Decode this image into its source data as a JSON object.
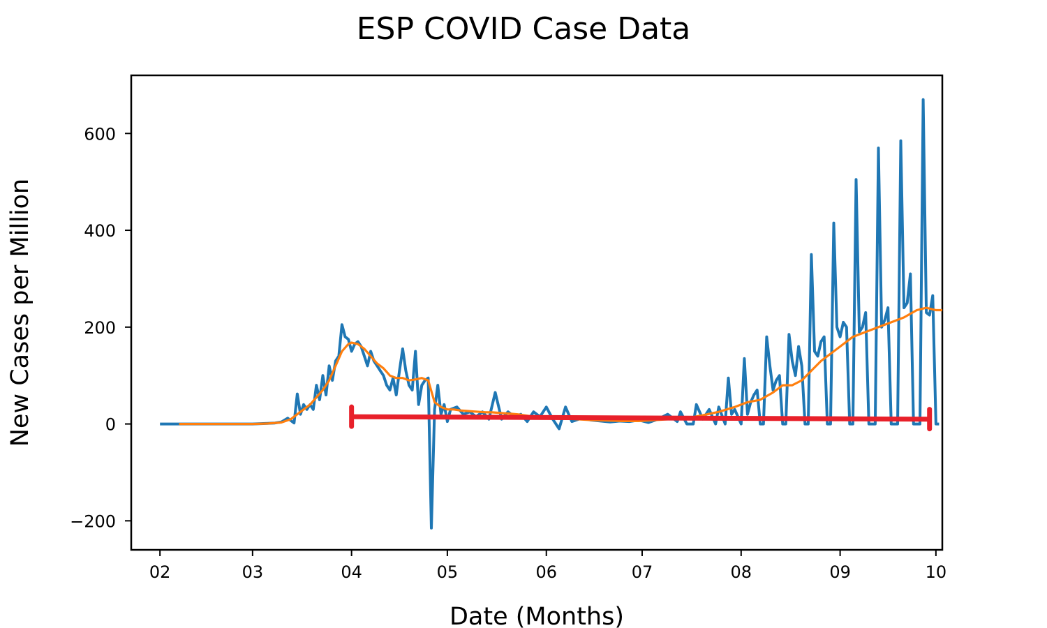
{
  "chart_data": {
    "type": "line",
    "title": "ESP COVID Case Data",
    "xlabel": "Date (Months)",
    "ylabel": "New Cases per Million",
    "x_tick_labels": [
      "02",
      "03",
      "04",
      "05",
      "06",
      "07",
      "08",
      "09",
      "10"
    ],
    "y_tick_labels": [
      "−200",
      "0",
      "200",
      "400",
      "600"
    ],
    "y_ticks": [
      -200,
      0,
      200,
      400,
      600
    ],
    "xlim": [
      "2020-01-23",
      "2020-10-03"
    ],
    "ylim": [
      -260,
      720
    ],
    "grid": false,
    "legend": "none",
    "series": [
      {
        "color": "#1f77b4",
        "points": [
          [
            "2020-02-01",
            0
          ],
          [
            "2020-02-10",
            0
          ],
          [
            "2020-02-20",
            0
          ],
          [
            "2020-03-01",
            0
          ],
          [
            "2020-03-05",
            1
          ],
          [
            "2020-03-08",
            2
          ],
          [
            "2020-03-10",
            4
          ],
          [
            "2020-03-12",
            12
          ],
          [
            "2020-03-14",
            2
          ],
          [
            "2020-03-15",
            62
          ],
          [
            "2020-03-16",
            20
          ],
          [
            "2020-03-17",
            40
          ],
          [
            "2020-03-18",
            30
          ],
          [
            "2020-03-19",
            40
          ],
          [
            "2020-03-20",
            30
          ],
          [
            "2020-03-21",
            80
          ],
          [
            "2020-03-22",
            50
          ],
          [
            "2020-03-23",
            100
          ],
          [
            "2020-03-24",
            60
          ],
          [
            "2020-03-25",
            120
          ],
          [
            "2020-03-26",
            90
          ],
          [
            "2020-03-27",
            130
          ],
          [
            "2020-03-28",
            140
          ],
          [
            "2020-03-29",
            205
          ],
          [
            "2020-03-30",
            180
          ],
          [
            "2020-03-31",
            175
          ],
          [
            "2020-04-01",
            150
          ],
          [
            "2020-04-02",
            165
          ],
          [
            "2020-04-03",
            170
          ],
          [
            "2020-04-04",
            160
          ],
          [
            "2020-04-05",
            140
          ],
          [
            "2020-04-06",
            120
          ],
          [
            "2020-04-07",
            150
          ],
          [
            "2020-04-08",
            130
          ],
          [
            "2020-04-09",
            120
          ],
          [
            "2020-04-10",
            110
          ],
          [
            "2020-04-11",
            100
          ],
          [
            "2020-04-12",
            80
          ],
          [
            "2020-04-13",
            70
          ],
          [
            "2020-04-14",
            95
          ],
          [
            "2020-04-15",
            60
          ],
          [
            "2020-04-16",
            110
          ],
          [
            "2020-04-17",
            155
          ],
          [
            "2020-04-18",
            110
          ],
          [
            "2020-04-19",
            80
          ],
          [
            "2020-04-20",
            70
          ],
          [
            "2020-04-21",
            150
          ],
          [
            "2020-04-22",
            40
          ],
          [
            "2020-04-23",
            80
          ],
          [
            "2020-04-24",
            90
          ],
          [
            "2020-04-25",
            95
          ],
          [
            "2020-04-26",
            -215
          ],
          [
            "2020-04-27",
            30
          ],
          [
            "2020-04-28",
            80
          ],
          [
            "2020-04-29",
            20
          ],
          [
            "2020-04-30",
            40
          ],
          [
            "2020-05-01",
            5
          ],
          [
            "2020-05-02",
            30
          ],
          [
            "2020-05-04",
            35
          ],
          [
            "2020-05-06",
            20
          ],
          [
            "2020-05-08",
            25
          ],
          [
            "2020-05-10",
            15
          ],
          [
            "2020-05-12",
            25
          ],
          [
            "2020-05-14",
            10
          ],
          [
            "2020-05-16",
            65
          ],
          [
            "2020-05-18",
            10
          ],
          [
            "2020-05-20",
            25
          ],
          [
            "2020-05-22",
            15
          ],
          [
            "2020-05-24",
            20
          ],
          [
            "2020-05-26",
            5
          ],
          [
            "2020-05-28",
            25
          ],
          [
            "2020-05-30",
            15
          ],
          [
            "2020-06-01",
            35
          ],
          [
            "2020-06-03",
            10
          ],
          [
            "2020-06-05",
            -10
          ],
          [
            "2020-06-07",
            35
          ],
          [
            "2020-06-09",
            5
          ],
          [
            "2020-06-12",
            12
          ],
          [
            "2020-06-15",
            8
          ],
          [
            "2020-06-18",
            6
          ],
          [
            "2020-06-21",
            4
          ],
          [
            "2020-06-24",
            6
          ],
          [
            "2020-06-27",
            5
          ],
          [
            "2020-06-30",
            8
          ],
          [
            "2020-07-03",
            3
          ],
          [
            "2020-07-06",
            10
          ],
          [
            "2020-07-09",
            20
          ],
          [
            "2020-07-12",
            5
          ],
          [
            "2020-07-13",
            25
          ],
          [
            "2020-07-15",
            0
          ],
          [
            "2020-07-17",
            0
          ],
          [
            "2020-07-18",
            40
          ],
          [
            "2020-07-20",
            10
          ],
          [
            "2020-07-22",
            30
          ],
          [
            "2020-07-24",
            0
          ],
          [
            "2020-07-25",
            35
          ],
          [
            "2020-07-27",
            0
          ],
          [
            "2020-07-28",
            95
          ],
          [
            "2020-07-29",
            20
          ],
          [
            "2020-07-30",
            30
          ],
          [
            "2020-08-01",
            0
          ],
          [
            "2020-08-02",
            135
          ],
          [
            "2020-08-03",
            20
          ],
          [
            "2020-08-04",
            45
          ],
          [
            "2020-08-05",
            60
          ],
          [
            "2020-08-06",
            70
          ],
          [
            "2020-08-07",
            0
          ],
          [
            "2020-08-08",
            0
          ],
          [
            "2020-08-09",
            180
          ],
          [
            "2020-08-10",
            120
          ],
          [
            "2020-08-11",
            70
          ],
          [
            "2020-08-12",
            90
          ],
          [
            "2020-08-13",
            100
          ],
          [
            "2020-08-14",
            0
          ],
          [
            "2020-08-15",
            0
          ],
          [
            "2020-08-16",
            185
          ],
          [
            "2020-08-17",
            130
          ],
          [
            "2020-08-18",
            100
          ],
          [
            "2020-08-19",
            160
          ],
          [
            "2020-08-20",
            120
          ],
          [
            "2020-08-21",
            0
          ],
          [
            "2020-08-22",
            0
          ],
          [
            "2020-08-23",
            350
          ],
          [
            "2020-08-24",
            150
          ],
          [
            "2020-08-25",
            140
          ],
          [
            "2020-08-26",
            170
          ],
          [
            "2020-08-27",
            180
          ],
          [
            "2020-08-28",
            0
          ],
          [
            "2020-08-29",
            0
          ],
          [
            "2020-08-30",
            415
          ],
          [
            "2020-08-31",
            200
          ],
          [
            "2020-09-01",
            180
          ],
          [
            "2020-09-02",
            210
          ],
          [
            "2020-09-03",
            200
          ],
          [
            "2020-09-04",
            0
          ],
          [
            "2020-09-05",
            0
          ],
          [
            "2020-09-06",
            505
          ],
          [
            "2020-09-07",
            190
          ],
          [
            "2020-09-08",
            200
          ],
          [
            "2020-09-09",
            230
          ],
          [
            "2020-09-10",
            0
          ],
          [
            "2020-09-11",
            0
          ],
          [
            "2020-09-12",
            0
          ],
          [
            "2020-09-13",
            570
          ],
          [
            "2020-09-14",
            200
          ],
          [
            "2020-09-15",
            215
          ],
          [
            "2020-09-16",
            240
          ],
          [
            "2020-09-17",
            0
          ],
          [
            "2020-09-18",
            0
          ],
          [
            "2020-09-19",
            0
          ],
          [
            "2020-09-20",
            585
          ],
          [
            "2020-09-21",
            240
          ],
          [
            "2020-09-22",
            250
          ],
          [
            "2020-09-23",
            310
          ],
          [
            "2020-09-24",
            0
          ],
          [
            "2020-09-25",
            0
          ],
          [
            "2020-09-26",
            0
          ],
          [
            "2020-09-27",
            670
          ],
          [
            "2020-09-28",
            230
          ],
          [
            "2020-09-29",
            225
          ],
          [
            "2020-09-30",
            265
          ],
          [
            "2020-10-01",
            0
          ],
          [
            "2020-10-02",
            0
          ]
        ]
      },
      {
        "color": "#ff7f0e",
        "points": [
          [
            "2020-02-07",
            0
          ],
          [
            "2020-02-20",
            0
          ],
          [
            "2020-03-01",
            0
          ],
          [
            "2020-03-06",
            1
          ],
          [
            "2020-03-10",
            3
          ],
          [
            "2020-03-13",
            10
          ],
          [
            "2020-03-16",
            25
          ],
          [
            "2020-03-19",
            40
          ],
          [
            "2020-03-21",
            55
          ],
          [
            "2020-03-23",
            70
          ],
          [
            "2020-03-25",
            90
          ],
          [
            "2020-03-27",
            120
          ],
          [
            "2020-03-29",
            150
          ],
          [
            "2020-03-31",
            165
          ],
          [
            "2020-04-01",
            168
          ],
          [
            "2020-04-03",
            165
          ],
          [
            "2020-04-05",
            155
          ],
          [
            "2020-04-07",
            140
          ],
          [
            "2020-04-09",
            125
          ],
          [
            "2020-04-11",
            115
          ],
          [
            "2020-04-13",
            100
          ],
          [
            "2020-04-15",
            95
          ],
          [
            "2020-04-17",
            95
          ],
          [
            "2020-04-19",
            90
          ],
          [
            "2020-04-21",
            92
          ],
          [
            "2020-04-23",
            95
          ],
          [
            "2020-04-25",
            90
          ],
          [
            "2020-04-27",
            45
          ],
          [
            "2020-04-29",
            35
          ],
          [
            "2020-05-01",
            30
          ],
          [
            "2020-05-03",
            30
          ],
          [
            "2020-05-05",
            28
          ],
          [
            "2020-05-07",
            27
          ],
          [
            "2020-05-09",
            26
          ],
          [
            "2020-05-11",
            25
          ],
          [
            "2020-05-13",
            24
          ],
          [
            "2020-05-15",
            24
          ],
          [
            "2020-05-17",
            23
          ],
          [
            "2020-05-19",
            22
          ],
          [
            "2020-05-21",
            21
          ],
          [
            "2020-05-23",
            20
          ],
          [
            "2020-05-25",
            18
          ],
          [
            "2020-05-27",
            16
          ],
          [
            "2020-05-29",
            14
          ],
          [
            "2020-06-01",
            13
          ],
          [
            "2020-06-05",
            12
          ],
          [
            "2020-06-10",
            10
          ],
          [
            "2020-06-15",
            8
          ],
          [
            "2020-06-20",
            7
          ],
          [
            "2020-06-25",
            6
          ],
          [
            "2020-06-30",
            6
          ],
          [
            "2020-07-05",
            8
          ],
          [
            "2020-07-10",
            10
          ],
          [
            "2020-07-15",
            12
          ],
          [
            "2020-07-20",
            18
          ],
          [
            "2020-07-25",
            25
          ],
          [
            "2020-07-30",
            35
          ],
          [
            "2020-08-03",
            45
          ],
          [
            "2020-08-07",
            50
          ],
          [
            "2020-08-11",
            65
          ],
          [
            "2020-08-14",
            80
          ],
          [
            "2020-08-17",
            80
          ],
          [
            "2020-08-20",
            90
          ],
          [
            "2020-08-23",
            110
          ],
          [
            "2020-08-26",
            130
          ],
          [
            "2020-08-29",
            145
          ],
          [
            "2020-09-01",
            160
          ],
          [
            "2020-09-05",
            180
          ],
          [
            "2020-09-09",
            190
          ],
          [
            "2020-09-13",
            200
          ],
          [
            "2020-09-17",
            210
          ],
          [
            "2020-09-21",
            220
          ],
          [
            "2020-09-25",
            235
          ],
          [
            "2020-09-28",
            240
          ],
          [
            "2020-10-01",
            235
          ],
          [
            "2020-10-03",
            235
          ]
        ]
      },
      {
        "color": "#e8202a",
        "points": [
          [
            "2020-04-01",
            15
          ],
          [
            "2020-09-29",
            10
          ]
        ],
        "end_markers": true
      }
    ]
  }
}
